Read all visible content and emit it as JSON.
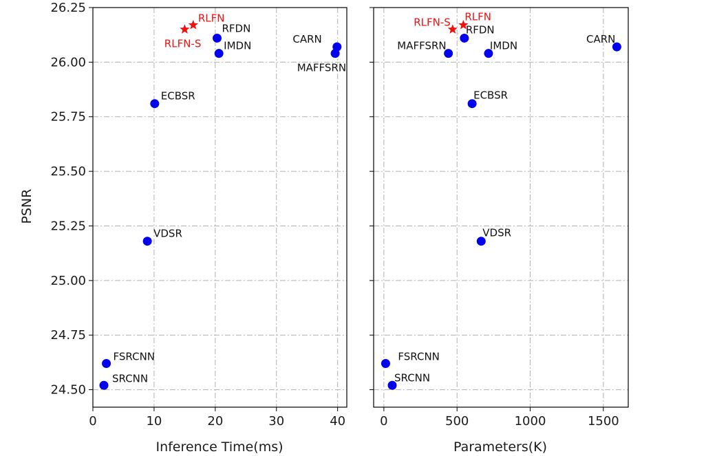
{
  "chart_data": [
    {
      "type": "scatter",
      "xlabel": "Inference Time(ms)",
      "ylabel": "PSNR",
      "xlim": [
        0,
        41.5
      ],
      "ylim": [
        24.42,
        26.25
      ],
      "xticks": [
        0,
        10,
        20,
        30,
        40
      ],
      "yticks": [
        "24.50",
        "24.75",
        "25.00",
        "25.25",
        "25.50",
        "25.75",
        "26.00",
        "26.25"
      ],
      "grid": true,
      "points": [
        {
          "name": "SRCNN",
          "x": 1.8,
          "y": 24.52,
          "series": "other"
        },
        {
          "name": "FSRCNN",
          "x": 2.2,
          "y": 24.62,
          "series": "other"
        },
        {
          "name": "VDSR",
          "x": 8.9,
          "y": 25.18,
          "series": "other"
        },
        {
          "name": "ECBSR",
          "x": 10.1,
          "y": 25.81,
          "series": "other"
        },
        {
          "name": "RFDN",
          "x": 20.3,
          "y": 26.11,
          "series": "other"
        },
        {
          "name": "IMDN",
          "x": 20.6,
          "y": 26.04,
          "series": "other"
        },
        {
          "name": "CARN",
          "x": 39.9,
          "y": 26.07,
          "series": "other"
        },
        {
          "name": "MAFFSRN",
          "x": 39.6,
          "y": 26.04,
          "series": "other"
        },
        {
          "name": "RLFN",
          "x": 16.4,
          "y": 26.17,
          "series": "ours"
        },
        {
          "name": "RLFN-S",
          "x": 15.0,
          "y": 26.15,
          "series": "ours"
        }
      ]
    },
    {
      "type": "scatter",
      "xlabel": "Parameters(K)",
      "ylabel": "",
      "xlim": [
        -70,
        1670
      ],
      "ylim": [
        24.42,
        26.25
      ],
      "xticks": [
        0,
        500,
        1000,
        1500
      ],
      "grid": true,
      "points": [
        {
          "name": "SRCNN",
          "x": 57,
          "y": 24.52,
          "series": "other"
        },
        {
          "name": "FSRCNN",
          "x": 12,
          "y": 24.62,
          "series": "other"
        },
        {
          "name": "VDSR",
          "x": 665,
          "y": 25.18,
          "series": "other"
        },
        {
          "name": "ECBSR",
          "x": 603,
          "y": 25.81,
          "series": "other"
        },
        {
          "name": "RFDN",
          "x": 550,
          "y": 26.11,
          "series": "other"
        },
        {
          "name": "IMDN",
          "x": 715,
          "y": 26.04,
          "series": "other"
        },
        {
          "name": "CARN",
          "x": 1592,
          "y": 26.07,
          "series": "other"
        },
        {
          "name": "MAFFSRN",
          "x": 441,
          "y": 26.04,
          "series": "other"
        },
        {
          "name": "RLFN",
          "x": 543,
          "y": 26.17,
          "series": "ours"
        },
        {
          "name": "RLFN-S",
          "x": 470,
          "y": 26.15,
          "series": "ours"
        }
      ]
    }
  ],
  "colors": {
    "other": "#0000ee",
    "ours": "#ee1111",
    "grid": "#b0b0b0",
    "axis": "#000000"
  }
}
